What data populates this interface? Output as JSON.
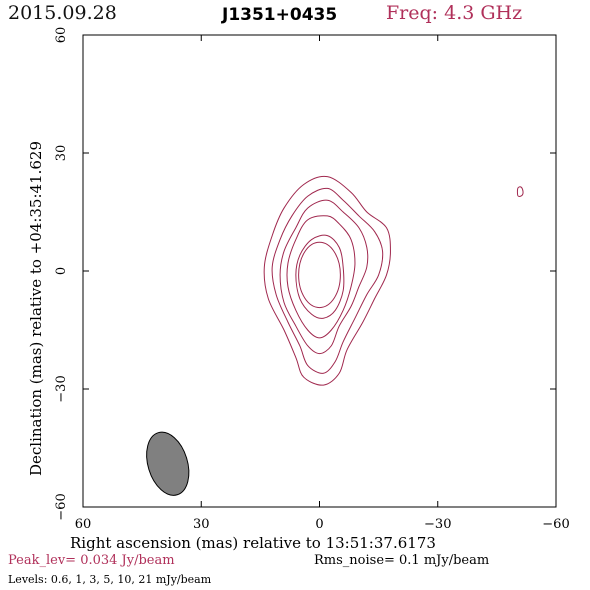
{
  "header": {
    "date": "2015.09.28",
    "source": "J1351+0435",
    "frequency": "Freq: 4.3 GHz"
  },
  "footer": {
    "peak": "Peak_lev=  0.034 Jy/beam",
    "rms": "Rms_noise=   0.1 mJy/beam",
    "levels": "Levels: 0.6,   1,   3,   5,  10,  21 mJy/beam"
  },
  "colors": {
    "contour": "#a0284e",
    "beam": "#808080",
    "freq_text": "#b0305a"
  },
  "chart_data": {
    "type": "contour",
    "xlabel": "Right ascension (mas) relative to 13:51:37.6173",
    "ylabel": "Declination (mas) relative to +04:35:41.629",
    "xlim": [
      60,
      -60
    ],
    "ylim": [
      -60,
      60
    ],
    "x_ticks": [
      60,
      30,
      0,
      -30,
      -60
    ],
    "y_ticks": [
      -60,
      -30,
      0,
      30,
      60
    ],
    "x_tick_labels": [
      "60",
      "30",
      "0",
      "−30",
      "−60"
    ],
    "y_tick_labels": [
      "−60",
      "−30",
      "0",
      "30",
      "60"
    ],
    "contour_levels_mJy": [
      0.6,
      1,
      3,
      5,
      10,
      21
    ],
    "peak_Jy_per_beam": 0.034,
    "rms_mJy_per_beam": 0.1,
    "contours": [
      {
        "level": 0.6,
        "points": [
          [
            -2,
            24
          ],
          [
            4,
            22
          ],
          [
            9,
            16
          ],
          [
            12,
            9
          ],
          [
            14,
            1
          ],
          [
            13,
            -7
          ],
          [
            9,
            -15
          ],
          [
            6,
            -22
          ],
          [
            4,
            -27
          ],
          [
            -1,
            -29
          ],
          [
            -5,
            -26
          ],
          [
            -7,
            -20
          ],
          [
            -11,
            -13
          ],
          [
            -14,
            -7
          ],
          [
            -17,
            -1
          ],
          [
            -18,
            5
          ],
          [
            -17,
            11
          ],
          [
            -12,
            15
          ],
          [
            -8,
            20
          ]
        ]
      },
      {
        "level": 1,
        "points": [
          [
            -2,
            21
          ],
          [
            3,
            19
          ],
          [
            7,
            14
          ],
          [
            10,
            8
          ],
          [
            12,
            1
          ],
          [
            11,
            -6
          ],
          [
            8,
            -13
          ],
          [
            5,
            -19
          ],
          [
            3,
            -24
          ],
          [
            -1,
            -26
          ],
          [
            -4,
            -23
          ],
          [
            -6,
            -18
          ],
          [
            -9,
            -12
          ],
          [
            -12,
            -6
          ],
          [
            -15,
            -1
          ],
          [
            -16,
            5
          ],
          [
            -14,
            10
          ],
          [
            -10,
            14
          ],
          [
            -6,
            18
          ]
        ]
      },
      {
        "level": 3,
        "points": [
          [
            -2,
            18
          ],
          [
            3,
            16
          ],
          [
            6,
            11
          ],
          [
            9,
            5
          ],
          [
            10,
            -1
          ],
          [
            9,
            -8
          ],
          [
            6,
            -14
          ],
          [
            3,
            -19
          ],
          [
            0,
            -21
          ],
          [
            -3,
            -19
          ],
          [
            -5,
            -14
          ],
          [
            -8,
            -9
          ],
          [
            -10,
            -4
          ],
          [
            -12,
            1
          ],
          [
            -12,
            6
          ],
          [
            -10,
            11
          ],
          [
            -6,
            15
          ]
        ]
      },
      {
        "level": 5,
        "points": [
          [
            -2,
            14
          ],
          [
            3,
            13
          ],
          [
            6,
            8
          ],
          [
            8,
            2
          ],
          [
            8,
            -4
          ],
          [
            6,
            -10
          ],
          [
            3,
            -15
          ],
          [
            0,
            -17
          ],
          [
            -3,
            -15
          ],
          [
            -6,
            -10
          ],
          [
            -8,
            -4
          ],
          [
            -9,
            2
          ],
          [
            -8,
            8
          ],
          [
            -5,
            12
          ]
        ]
      },
      {
        "level": 10,
        "points": [
          [
            -2,
            9
          ],
          [
            2,
            8
          ],
          [
            5,
            4
          ],
          [
            6,
            -1
          ],
          [
            5,
            -7
          ],
          [
            2,
            -11
          ],
          [
            -1,
            -12
          ],
          [
            -4,
            -10
          ],
          [
            -6,
            -5
          ],
          [
            -6,
            1
          ],
          [
            -5,
            6
          ]
        ]
      },
      {
        "level": 21,
        "points": [
          [
            0,
            -1
          ]
        ]
      },
      {
        "level": 0.6,
        "points": [
          [
            -50.3,
            21
          ],
          [
            -51,
            21.4
          ],
          [
            -51.5,
            20.8
          ],
          [
            -51.6,
            19.6
          ],
          [
            -51,
            19
          ],
          [
            -50.3,
            19.2
          ]
        ]
      }
    ],
    "beam": {
      "center": [
        38.5,
        -49
      ],
      "major": 16.5,
      "minor": 10,
      "pa_deg": 163
    }
  }
}
